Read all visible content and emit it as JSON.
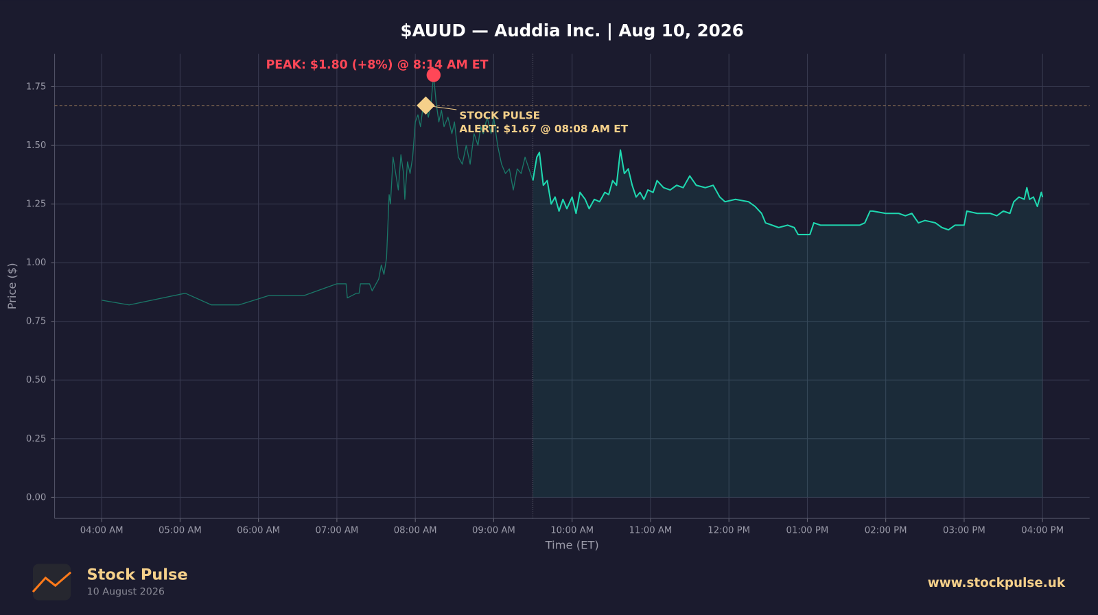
{
  "chart_data": {
    "type": "line",
    "title": "$AUUD — Auddia Inc.  |  Aug 10, 2026",
    "x_label": "Time (ET)",
    "y_label": "Price ($)",
    "xlim": [
      "03:24 AM",
      "04:36 PM"
    ],
    "xticks": [
      "04:00 AM",
      "05:00 AM",
      "06:00 AM",
      "07:00 AM",
      "08:00 AM",
      "09:00 AM",
      "10:00 AM",
      "11:00 AM",
      "12:00 PM",
      "01:00 PM",
      "02:00 PM",
      "03:00 PM",
      "04:00 PM"
    ],
    "ylim": [
      -0.09,
      1.89
    ],
    "yticks": [
      {
        "value": 0,
        "label": "0.00"
      },
      {
        "value": 0.25,
        "label": "0.25"
      },
      {
        "value": 0.5,
        "label": "0.50"
      },
      {
        "value": 0.75,
        "label": "0.75"
      },
      {
        "value": 1,
        "label": "1.00"
      },
      {
        "value": 1.25,
        "label": "1.25"
      },
      {
        "value": 1.5,
        "label": "1.50"
      },
      {
        "value": 1.75,
        "label": "1.75"
      }
    ],
    "grid": true,
    "series": [
      {
        "color": "#1a7868",
        "fill": false,
        "x": [
          "04:00 AM",
          "04:21 AM",
          "05:04 AM",
          "05:24 AM",
          "05:45 AM",
          "06:08 AM",
          "06:35 AM",
          "07:00 AM",
          "07:07 AM",
          "07:08 AM",
          "07:15 AM",
          "07:17 AM",
          "07:18 AM",
          "07:25 AM",
          "07:27 AM",
          "07:32 AM",
          "07:34 AM",
          "07:36 AM",
          "07:38 AM",
          "07:40 AM",
          "07:41 AM",
          "07:43 AM",
          "07:45 AM",
          "07:47 AM",
          "07:49 AM",
          "07:51 AM",
          "07:52 AM",
          "07:54 AM",
          "07:56 AM",
          "07:58 AM",
          "08:00 AM",
          "08:02 AM",
          "08:04 AM",
          "08:06 AM",
          "08:08 AM",
          "08:10 AM",
          "08:12 AM",
          "08:14 AM",
          "08:16 AM",
          "08:18 AM",
          "08:20 AM",
          "08:22 AM",
          "08:25 AM",
          "08:28 AM",
          "08:30 AM",
          "08:33 AM",
          "08:36 AM",
          "08:39 AM",
          "08:42 AM",
          "08:45 AM",
          "08:48 AM",
          "08:50 AM",
          "08:52 AM",
          "08:55 AM",
          "08:58 AM",
          "09:00 AM",
          "09:03 AM",
          "09:06 AM",
          "09:09 AM",
          "09:12 AM",
          "09:15 AM",
          "09:18 AM",
          "09:21 AM",
          "09:24 AM",
          "09:27 AM",
          "09:30 AM"
        ],
        "values": [
          0.84,
          0.82,
          0.87,
          0.82,
          0.82,
          0.86,
          0.86,
          0.91,
          0.91,
          0.85,
          0.87,
          0.87,
          0.91,
          0.91,
          0.88,
          0.93,
          0.99,
          0.95,
          1.02,
          1.29,
          1.25,
          1.45,
          1.38,
          1.31,
          1.46,
          1.38,
          1.27,
          1.43,
          1.38,
          1.45,
          1.6,
          1.63,
          1.58,
          1.67,
          1.67,
          1.62,
          1.68,
          1.8,
          1.68,
          1.6,
          1.65,
          1.58,
          1.62,
          1.55,
          1.6,
          1.45,
          1.42,
          1.5,
          1.42,
          1.55,
          1.5,
          1.58,
          1.55,
          1.62,
          1.55,
          1.62,
          1.5,
          1.42,
          1.38,
          1.4,
          1.31,
          1.4,
          1.38,
          1.45,
          1.4,
          1.35
        ]
      },
      {
        "color": "#1fd8b0",
        "fill": true,
        "x": [
          "09:30 AM",
          "09:33 AM",
          "09:35 AM",
          "09:38 AM",
          "09:41 AM",
          "09:44 AM",
          "09:47 AM",
          "09:50 AM",
          "09:53 AM",
          "09:56 AM",
          "10:00 AM",
          "10:03 AM",
          "10:06 AM",
          "10:10 AM",
          "10:13 AM",
          "10:17 AM",
          "10:21 AM",
          "10:25 AM",
          "10:28 AM",
          "10:31 AM",
          "10:34 AM",
          "10:37 AM",
          "10:40 AM",
          "10:43 AM",
          "10:46 AM",
          "10:49 AM",
          "10:52 AM",
          "10:55 AM",
          "10:58 AM",
          "11:02 AM",
          "11:05 AM",
          "11:10 AM",
          "11:15 AM",
          "11:20 AM",
          "11:25 AM",
          "11:30 AM",
          "11:35 AM",
          "11:42 AM",
          "11:48 AM",
          "11:53 AM",
          "11:57 AM",
          "12:05 PM",
          "12:15 PM",
          "12:20 PM",
          "12:25 PM",
          "12:28 PM",
          "12:33 PM",
          "12:38 PM",
          "12:45 PM",
          "12:50 PM",
          "12:53 PM",
          "12:58 PM",
          "01:02 PM",
          "01:05 PM",
          "01:10 PM",
          "01:20 PM",
          "01:30 PM",
          "01:40 PM",
          "01:44 PM",
          "01:48 PM",
          "01:50 PM",
          "02:00 PM",
          "02:10 PM",
          "02:15 PM",
          "02:20 PM",
          "02:25 PM",
          "02:30 PM",
          "02:38 PM",
          "02:43 PM",
          "02:48 PM",
          "02:53 PM",
          "03:00 PM",
          "03:02 PM",
          "03:10 PM",
          "03:20 PM",
          "03:25 PM",
          "03:30 PM",
          "03:35 PM",
          "03:38 PM",
          "03:42 PM",
          "03:46 PM",
          "03:48 PM",
          "03:50 PM",
          "03:53 PM",
          "03:56 PM",
          "03:59 PM",
          "04:00 PM"
        ],
        "values": [
          1.35,
          1.45,
          1.47,
          1.33,
          1.35,
          1.25,
          1.28,
          1.22,
          1.27,
          1.23,
          1.28,
          1.21,
          1.3,
          1.27,
          1.23,
          1.27,
          1.26,
          1.3,
          1.29,
          1.35,
          1.33,
          1.48,
          1.38,
          1.4,
          1.33,
          1.28,
          1.3,
          1.27,
          1.31,
          1.3,
          1.35,
          1.32,
          1.31,
          1.33,
          1.32,
          1.37,
          1.33,
          1.32,
          1.33,
          1.28,
          1.26,
          1.27,
          1.26,
          1.24,
          1.21,
          1.17,
          1.16,
          1.15,
          1.16,
          1.15,
          1.12,
          1.12,
          1.12,
          1.17,
          1.16,
          1.16,
          1.16,
          1.16,
          1.17,
          1.22,
          1.22,
          1.21,
          1.21,
          1.2,
          1.21,
          1.17,
          1.18,
          1.17,
          1.15,
          1.14,
          1.16,
          1.16,
          1.22,
          1.21,
          1.21,
          1.2,
          1.22,
          1.21,
          1.26,
          1.28,
          1.27,
          1.32,
          1.27,
          1.28,
          1.24,
          1.3,
          1.28
        ]
      }
    ],
    "annotations": [
      {
        "kind": "peak",
        "text": [
          "PEAK: $1.80 (+8%) @ 8:14 AM ET"
        ],
        "x": "08:14 AM",
        "y": 1.8,
        "color": "#ff4757"
      },
      {
        "kind": "alert",
        "text": [
          "STOCK PULSE",
          "ALERT: $1.67 @ 08:08 AM ET"
        ],
        "x": "08:08 AM",
        "y": 1.67,
        "color": "#f5d08a"
      }
    ]
  },
  "footer": {
    "brand": "Stock Pulse",
    "date": "10 August 2026",
    "url": "www.stockpulse.uk"
  }
}
